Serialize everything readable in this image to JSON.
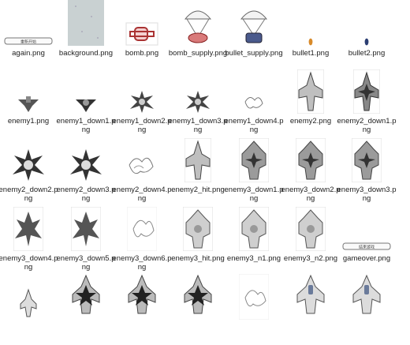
{
  "files": [
    {
      "name": "again.png",
      "kind": "button-small",
      "btn_text": "重新开始"
    },
    {
      "name": "background.png",
      "kind": "background"
    },
    {
      "name": "bomb.png",
      "kind": "bomb"
    },
    {
      "name": "bomb_supply.png",
      "kind": "supply-bomb"
    },
    {
      "name": "bullet_supply.png",
      "kind": "supply-bullet"
    },
    {
      "name": "bullet1.png",
      "kind": "bullet-orange"
    },
    {
      "name": "bullet2.png",
      "kind": "bullet-blue"
    },
    {
      "name": "enemy1.png",
      "kind": "enemy1"
    },
    {
      "name": "enemy1_down1.png",
      "kind": "enemy1-down"
    },
    {
      "name": "enemy1_down2.png",
      "kind": "enemy1-explode"
    },
    {
      "name": "enemy1_down3.png",
      "kind": "enemy1-explode"
    },
    {
      "name": "enemy1_down4.png",
      "kind": "enemy1-smoke"
    },
    {
      "name": "enemy2.png",
      "kind": "enemy2"
    },
    {
      "name": "enemy2_down1.png",
      "kind": "enemy2-down"
    },
    {
      "name": "enemy2_down2.png",
      "kind": "enemy2-explode"
    },
    {
      "name": "enemy2_down3.png",
      "kind": "enemy2-explode"
    },
    {
      "name": "enemy2_down4.png",
      "kind": "enemy2-smoke"
    },
    {
      "name": "enemy2_hit.png",
      "kind": "enemy2"
    },
    {
      "name": "enemy3_down1.png",
      "kind": "enemy3-down"
    },
    {
      "name": "enemy3_down2.png",
      "kind": "enemy3-down"
    },
    {
      "name": "enemy3_down3.png",
      "kind": "enemy3-down"
    },
    {
      "name": "enemy3_down4.png",
      "kind": "enemy3-explode"
    },
    {
      "name": "enemy3_down5.png",
      "kind": "enemy3-explode"
    },
    {
      "name": "enemy3_down6.png",
      "kind": "enemy3-smoke"
    },
    {
      "name": "enemy3_hit.png",
      "kind": "enemy3"
    },
    {
      "name": "enemy3_n1.png",
      "kind": "enemy3"
    },
    {
      "name": "enemy3_n2.png",
      "kind": "enemy3"
    },
    {
      "name": "gameover.png",
      "kind": "button-small",
      "btn_text": "结束游戏"
    },
    {
      "name": "",
      "kind": "hero-small"
    },
    {
      "name": "",
      "kind": "hero-explode"
    },
    {
      "name": "",
      "kind": "hero-explode"
    },
    {
      "name": "",
      "kind": "hero-explode"
    },
    {
      "name": "",
      "kind": "hero-smoke"
    },
    {
      "name": "",
      "kind": "hero"
    },
    {
      "name": "",
      "kind": "hero"
    }
  ]
}
